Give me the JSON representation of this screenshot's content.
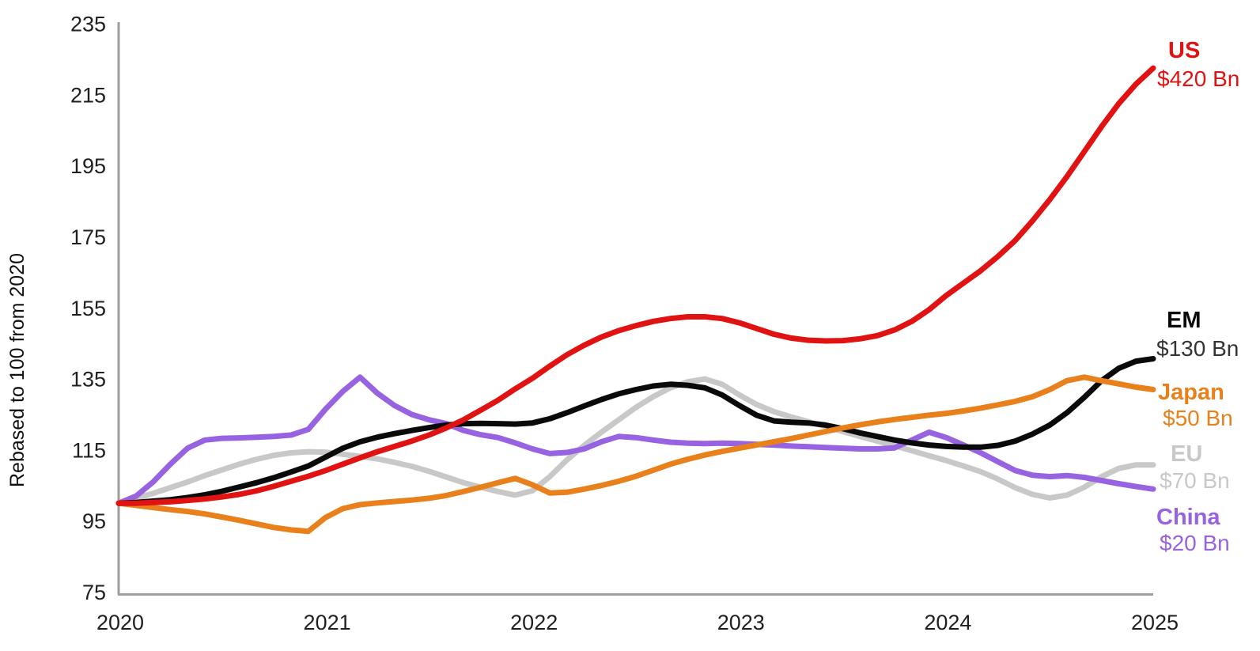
{
  "chart_data": {
    "type": "line",
    "title": "",
    "ylabel": "Rebased to 100 from 2020",
    "xlabel": "",
    "x_tick_labels": [
      "2020",
      "2021",
      "2022",
      "2023",
      "2024",
      "2025"
    ],
    "y_tick_values": [
      75,
      95,
      115,
      135,
      155,
      175,
      195,
      215,
      235
    ],
    "ylim": [
      75,
      235
    ],
    "xlim": [
      2020,
      2025
    ],
    "points_per_year": 12,
    "grid": false,
    "legend_position": "right-annotations",
    "axis_color": "#9e9e9e",
    "tick_text_color": "#1f1f1f",
    "series": [
      {
        "name": "EU",
        "amount": "$70 Bn",
        "color": "#c8c8c8",
        "amount_color": "#c8c8c8",
        "values": [
          100,
          101.4,
          102.8,
          104.4,
          106,
          107.8,
          109.4,
          111,
          112.4,
          113.5,
          114.2,
          114.5,
          114.4,
          113.8,
          113.2,
          112.5,
          111.5,
          110.4,
          109,
          107.4,
          105.8,
          104.5,
          103.3,
          102.3,
          103.5,
          107.5,
          112.2,
          116.3,
          120,
          123.5,
          127,
          130,
          132.5,
          134.2,
          135,
          133.5,
          130.5,
          127.8,
          125.8,
          124.3,
          123,
          121.6,
          120.2,
          118.8,
          117.5,
          116.2,
          114.8,
          113.4,
          112,
          110.5,
          108.9,
          106.8,
          104.4,
          102.5,
          101.5,
          102.3,
          104.5,
          107.5,
          109.8,
          110.8,
          110.8
        ]
      },
      {
        "name": "China",
        "amount": "$20 Bn",
        "color": "#9763e0",
        "amount_color": "#9763e0",
        "values": [
          100,
          102,
          106,
          111,
          115.5,
          117.8,
          118.3,
          118.4,
          118.6,
          118.8,
          119.2,
          120.8,
          126.5,
          131.5,
          135.5,
          131,
          127.5,
          125,
          123.5,
          122.4,
          120.5,
          119.3,
          118.5,
          117,
          115.3,
          114,
          114.3,
          115.3,
          117.3,
          118.8,
          118.5,
          117.8,
          117.2,
          116.9,
          116.8,
          116.9,
          116.8,
          116.6,
          116.4,
          116.1,
          115.9,
          115.7,
          115.5,
          115.3,
          115.3,
          115.6,
          117.8,
          120,
          118.5,
          116.4,
          114.2,
          111.7,
          109.2,
          107.9,
          107.5,
          107.8,
          107.3,
          106.4,
          105.5,
          104.7,
          104
        ]
      },
      {
        "name": "EM",
        "amount": "$130 Bn",
        "color": "#0a0a0a",
        "amount_color": "#333333",
        "values": [
          100,
          100.2,
          100.6,
          101,
          101.6,
          102.4,
          103.4,
          104.6,
          105.8,
          107.2,
          108.8,
          110.5,
          113,
          115.5,
          117.3,
          118.6,
          119.6,
          120.5,
          121.3,
          122,
          122.4,
          122.5,
          122.4,
          122.3,
          122.6,
          123.8,
          125.5,
          127.4,
          129.2,
          130.8,
          132,
          133,
          133.5,
          133.2,
          132.5,
          130.5,
          127.5,
          124.8,
          123.2,
          122.8,
          122.6,
          122,
          121,
          119.8,
          118.8,
          117.8,
          117,
          116.4,
          116,
          115.8,
          115.8,
          116.3,
          117.5,
          119.5,
          122,
          125.5,
          129.8,
          134.5,
          138,
          140,
          140.7
        ]
      },
      {
        "name": "Japan",
        "amount": "$50 Bn",
        "color": "#e8811c",
        "amount_color": "#e8811c",
        "values": [
          100,
          99.4,
          98.8,
          98.2,
          97.7,
          97,
          96.1,
          95.2,
          94.2,
          93.2,
          92.5,
          92.1,
          96,
          98.5,
          99.6,
          100.1,
          100.5,
          100.9,
          101.4,
          102.2,
          103.3,
          104.5,
          105.8,
          107,
          105.2,
          102.9,
          103.1,
          104,
          105,
          106.2,
          107.6,
          109.3,
          111,
          112.4,
          113.6,
          114.6,
          115.5,
          116.4,
          117.3,
          118.2,
          119.2,
          120.2,
          121.2,
          122.1,
          122.9,
          123.6,
          124.2,
          124.8,
          125.3,
          126,
          126.8,
          127.7,
          128.7,
          130,
          132,
          134.5,
          135.5,
          134.5,
          133.6,
          132.7,
          132
        ]
      },
      {
        "name": "US",
        "amount": "$420 Bn",
        "color": "#e01212",
        "amount_color": "#e01212",
        "values": [
          100,
          100,
          100.2,
          100.4,
          100.8,
          101.2,
          101.8,
          102.5,
          103.5,
          104.8,
          106.2,
          107.6,
          109.2,
          111,
          112.8,
          114.5,
          116,
          117.5,
          119.2,
          121.2,
          123.5,
          126.2,
          129,
          132.2,
          135.2,
          138.6,
          141.8,
          144.5,
          146.8,
          148.6,
          150,
          151.2,
          152,
          152.5,
          152.5,
          152,
          150.8,
          149.2,
          147.6,
          146.5,
          145.9,
          145.7,
          145.8,
          146.3,
          147.2,
          148.8,
          151.2,
          154.5,
          158.5,
          162,
          165.5,
          169.5,
          174,
          179.5,
          185.5,
          192,
          199,
          206,
          212.5,
          218,
          222.5
        ]
      }
    ]
  }
}
